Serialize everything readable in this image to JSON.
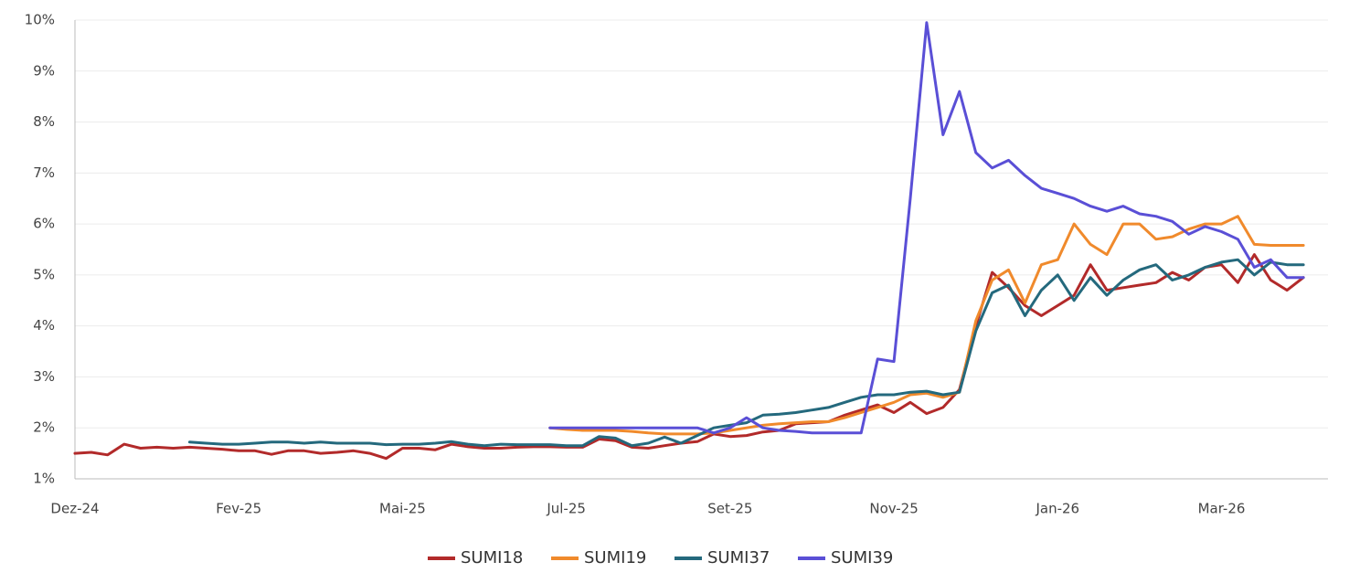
{
  "chart_data": {
    "type": "line",
    "categories": [
      "Dez-24",
      null,
      null,
      null,
      null,
      null,
      null,
      null,
      null,
      null,
      "Fev-25",
      null,
      null,
      null,
      null,
      null,
      null,
      null,
      null,
      null,
      "Mai-25",
      null,
      null,
      null,
      null,
      null,
      null,
      null,
      null,
      null,
      "Jul-25",
      null,
      null,
      null,
      null,
      null,
      null,
      null,
      null,
      null,
      "Set-25",
      null,
      null,
      null,
      null,
      null,
      null,
      null,
      null,
      null,
      "Nov-25",
      null,
      null,
      null,
      null,
      null,
      null,
      null,
      null,
      null,
      "Jan-26",
      null,
      null,
      null,
      null,
      null,
      null,
      null,
      null,
      null,
      "Mar-26",
      null,
      null,
      null,
      null,
      null
    ],
    "ylim": [
      1,
      10
    ],
    "yticks": [
      {
        "value": 1,
        "label": "1%"
      },
      {
        "value": 2,
        "label": "2%"
      },
      {
        "value": 3,
        "label": "3%"
      },
      {
        "value": 4,
        "label": "4%"
      },
      {
        "value": 5,
        "label": "5%"
      },
      {
        "value": 6,
        "label": "6%"
      },
      {
        "value": 7,
        "label": "7%"
      },
      {
        "value": 8,
        "label": "8%"
      },
      {
        "value": 9,
        "label": "9%"
      },
      {
        "value": 10,
        "label": "10%"
      }
    ],
    "grid": true,
    "legend": "bottom",
    "series": [
      {
        "name": "SUMI18",
        "color": "#b22a2a",
        "values": [
          1.5,
          1.52,
          1.47,
          1.68,
          1.6,
          1.62,
          1.6,
          1.62,
          1.6,
          1.58,
          1.55,
          1.55,
          1.48,
          1.55,
          1.55,
          1.5,
          1.52,
          1.55,
          1.5,
          1.4,
          1.6,
          1.6,
          1.57,
          1.68,
          1.63,
          1.6,
          1.6,
          1.62,
          1.63,
          1.63,
          1.62,
          1.62,
          1.78,
          1.75,
          1.62,
          1.6,
          1.65,
          1.7,
          1.73,
          1.88,
          1.83,
          1.85,
          1.92,
          1.95,
          2.08,
          2.1,
          2.12,
          2.25,
          2.35,
          2.45,
          2.3,
          2.5,
          2.28,
          2.4,
          2.75,
          4.0,
          5.05,
          4.75,
          4.4,
          4.2,
          4.4,
          4.6,
          5.2,
          4.7,
          4.75,
          4.8,
          4.85,
          5.05,
          4.9,
          5.15,
          5.2,
          4.85,
          5.4,
          4.9,
          4.7,
          4.95
        ]
      },
      {
        "name": "SUMI19",
        "color": "#f08a2c",
        "values": [
          null,
          null,
          null,
          null,
          null,
          null,
          null,
          null,
          null,
          null,
          null,
          null,
          null,
          null,
          null,
          null,
          null,
          null,
          null,
          null,
          null,
          null,
          null,
          null,
          null,
          null,
          null,
          null,
          null,
          2.0,
          1.97,
          1.95,
          1.95,
          1.95,
          1.93,
          1.9,
          1.88,
          1.88,
          1.88,
          1.9,
          1.95,
          2.0,
          2.05,
          2.08,
          2.1,
          2.12,
          2.12,
          2.2,
          2.3,
          2.4,
          2.5,
          2.65,
          2.68,
          2.6,
          2.7,
          4.1,
          4.9,
          5.1,
          4.45,
          5.2,
          5.3,
          6.0,
          5.6,
          5.4,
          6.0,
          6.0,
          5.7,
          5.75,
          5.9,
          6.0,
          6.0,
          6.15,
          5.6,
          5.58,
          5.58,
          5.58
        ]
      },
      {
        "name": "SUMI37",
        "color": "#24697d",
        "values": [
          null,
          null,
          null,
          null,
          null,
          null,
          null,
          1.72,
          1.7,
          1.68,
          1.68,
          1.7,
          1.72,
          1.72,
          1.7,
          1.72,
          1.7,
          1.7,
          1.7,
          1.67,
          1.68,
          1.68,
          1.7,
          1.73,
          1.68,
          1.65,
          1.68,
          1.67,
          1.67,
          1.67,
          1.65,
          1.65,
          1.83,
          1.8,
          1.65,
          1.7,
          1.82,
          1.7,
          1.85,
          2.0,
          2.05,
          2.1,
          2.25,
          2.27,
          2.3,
          2.35,
          2.4,
          2.5,
          2.6,
          2.65,
          2.65,
          2.7,
          2.72,
          2.65,
          2.7,
          3.9,
          4.65,
          4.8,
          4.2,
          4.7,
          5.0,
          4.5,
          4.95,
          4.6,
          4.9,
          5.1,
          5.2,
          4.9,
          5.0,
          5.15,
          5.25,
          5.3,
          5.0,
          5.25,
          5.2,
          5.2
        ]
      },
      {
        "name": "SUMI39",
        "color": "#5a4fd6",
        "values": [
          null,
          null,
          null,
          null,
          null,
          null,
          null,
          null,
          null,
          null,
          null,
          null,
          null,
          null,
          null,
          null,
          null,
          null,
          null,
          null,
          null,
          null,
          null,
          null,
          null,
          null,
          null,
          null,
          null,
          2.0,
          2.0,
          2.0,
          2.0,
          2.0,
          2.0,
          2.0,
          2.0,
          2.0,
          2.0,
          1.9,
          2.0,
          2.2,
          2.0,
          1.95,
          1.93,
          1.9,
          1.9,
          1.9,
          1.9,
          3.35,
          3.3,
          6.5,
          9.95,
          7.75,
          8.6,
          7.4,
          7.1,
          7.25,
          6.95,
          6.7,
          6.6,
          6.5,
          6.35,
          6.25,
          6.35,
          6.2,
          6.15,
          6.05,
          5.8,
          5.95,
          5.85,
          5.7,
          5.15,
          5.3,
          4.95,
          4.95
        ]
      }
    ]
  }
}
